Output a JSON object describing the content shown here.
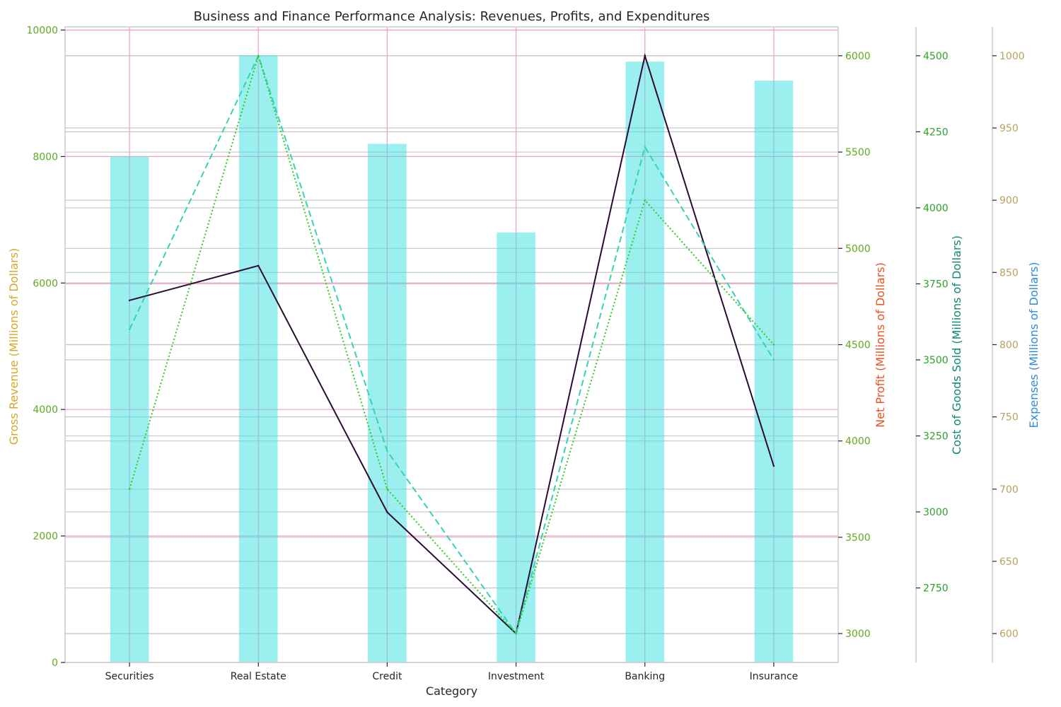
{
  "chart_data": {
    "type": "bar",
    "title": "Business and Finance Performance Analysis: Revenues, Profits, and Expenditures",
    "xlabel": "Category",
    "categories": [
      "Securities",
      "Real Estate",
      "Credit",
      "Investment",
      "Banking",
      "Insurance"
    ],
    "grid": true,
    "series": [
      {
        "name": "Gross Revenue",
        "type": "bar",
        "axis": "Gross Revenue (Millions of Dollars)",
        "values": [
          8000,
          9600,
          8200,
          6800,
          9500,
          9200
        ],
        "color": "#40e0e0"
      },
      {
        "name": "Net Profit",
        "type": "line",
        "style": "solid",
        "axis": "Net Profit (Millions of Dollars)",
        "values": [
          4730,
          4910,
          3630,
          3000,
          6000,
          3870
        ],
        "color": "#2a0a35"
      },
      {
        "name": "Cost of Goods Sold",
        "type": "line",
        "style": "dashed",
        "axis": "Cost of Goods Sold (Millions of Dollars)",
        "values": [
          3600,
          4500,
          3200,
          2600,
          4200,
          3500
        ],
        "color": "#36d2b8"
      },
      {
        "name": "Expenses",
        "type": "line",
        "style": "dotted",
        "axis": "Expenses (Millions of Dollars)",
        "values": [
          700,
          1000,
          700,
          600,
          900,
          800
        ],
        "color": "#2ecc1e"
      }
    ],
    "axes": [
      {
        "id": "gross",
        "label": "Gross Revenue (Millions of Dollars)",
        "label_color": "#d4a72c",
        "tick_color": "#5dab1e",
        "ylim": [
          0,
          10050
        ],
        "ticks": [
          0,
          2000,
          4000,
          6000,
          8000,
          10000
        ]
      },
      {
        "id": "profit",
        "label": "Net Profit (Millions of Dollars)",
        "label_color": "#e8521c",
        "tick_color": "#5dab1e",
        "ylim": [
          2850,
          6150
        ],
        "ticks": [
          3000,
          3500,
          4000,
          4500,
          5000,
          5500,
          6000
        ]
      },
      {
        "id": "cogs",
        "label": "Cost of Goods Sold (Millions of Dollars)",
        "label_color": "#0f8a6e",
        "tick_color": "#2ca02c",
        "ylim": [
          2505,
          4595
        ],
        "ticks": [
          2750,
          3000,
          3250,
          3500,
          3750,
          4000,
          4250,
          4500
        ]
      },
      {
        "id": "expenses",
        "label": "Expenses (Millions of Dollars)",
        "label_color": "#2e8bd8",
        "tick_color": "#b8a060",
        "ylim": [
          580,
          1020
        ],
        "ticks": [
          600,
          650,
          700,
          750,
          800,
          850,
          900,
          950,
          1000
        ]
      }
    ]
  }
}
